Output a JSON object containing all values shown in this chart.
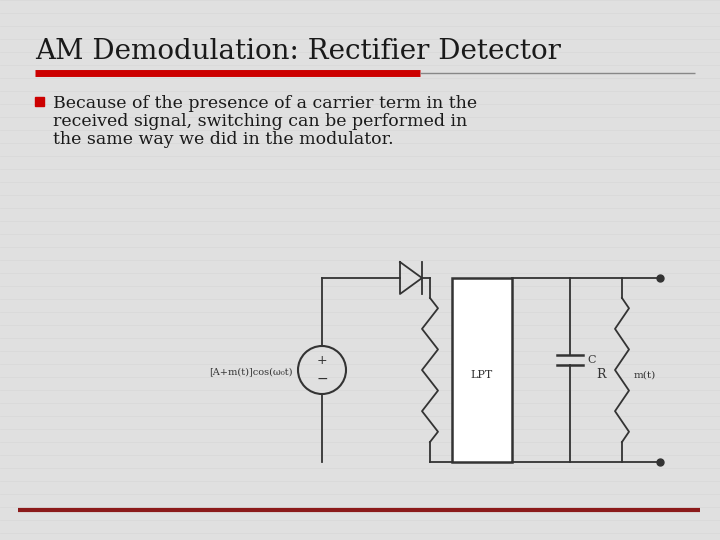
{
  "title": "AM Demodulation: Rectifier Detector",
  "title_color": "#1a1a1a",
  "title_underline_color_thick": "#cc0000",
  "title_underline_color_thin": "#888888",
  "background_color": "#e0e0e0",
  "stripe_color": "#d8d8d8",
  "bullet_text_line1": "Because of the presence of a carrier term in the",
  "bullet_text_line2": "received signal, switching can be performed in",
  "bullet_text_line3": "the same way we did in the modulator.",
  "bullet_color": "#cc0000",
  "text_color": "#1a1a1a",
  "circuit_line_color": "#333333",
  "label_source": "[A+m(t)]cos(ω₀t)",
  "label_lpt": "LPT",
  "label_R": "R",
  "label_C": "C",
  "label_mt": "m(t)",
  "bottom_line_color": "#8b1a1a"
}
